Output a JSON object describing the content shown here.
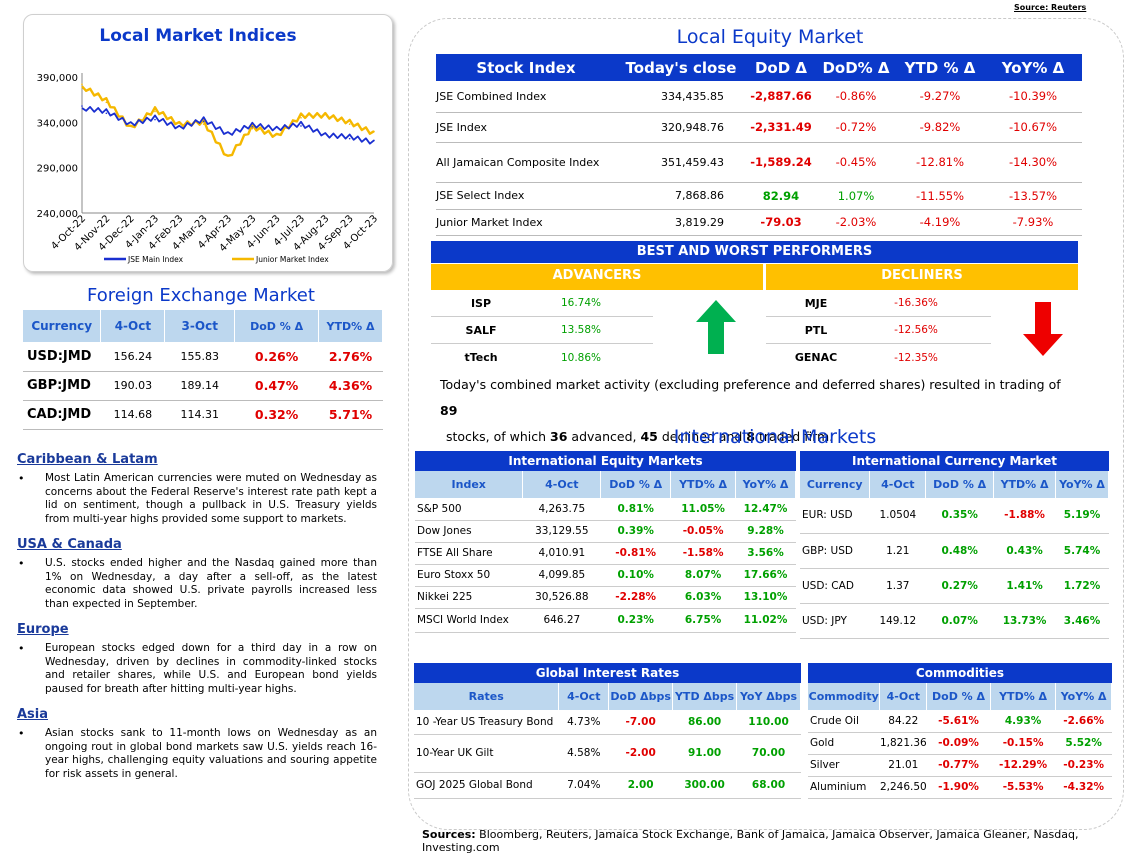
{
  "source_note": "Source: Reuters",
  "local_indices_chart": {
    "title": "Local Market Indices",
    "chart_data": {
      "type": "line",
      "title": "Local Market Indices",
      "y_ticks": [
        "390,000",
        "340,000",
        "290,000",
        "240,000"
      ],
      "ylim": [
        240000,
        390000
      ],
      "x_ticks": [
        "4-Oct-22",
        "4-Nov-22",
        "4-Dec-22",
        "4-Jan-23",
        "4-Feb-23",
        "4-Mar-23",
        "4-Apr-23",
        "4-May-23",
        "4-Jun-23",
        "4-Jul-23",
        "4-Aug-23",
        "4-Sep-23",
        "4-Oct-23"
      ],
      "series": [
        {
          "name": "JSE Main Index",
          "color": "#1a2fd0",
          "values": [
            358000,
            350000,
            340000,
            343000,
            336000,
            341000,
            329000,
            335000,
            335000,
            336000,
            328000,
            322000,
            320000
          ]
        },
        {
          "name": "Junior Market Index",
          "color": "#f5b800",
          "values": [
            382000,
            362000,
            336000,
            352000,
            340000,
            338000,
            303000,
            333000,
            327000,
            345000,
            350000,
            338000,
            330000
          ]
        }
      ],
      "legend_position": "bottom",
      "grid": false
    }
  },
  "forex": {
    "title": "Foreign Exchange Market",
    "headers": [
      "Currency",
      "4-Oct",
      "3-Oct",
      "DoD % Δ",
      "YTD% Δ"
    ],
    "rows": [
      [
        "USD:JMD",
        "156.24",
        "155.83",
        "0.26%",
        "2.76%"
      ],
      [
        "GBP:JMD",
        "190.03",
        "189.14",
        "0.47%",
        "4.36%"
      ],
      [
        "CAD:JMD",
        "114.68",
        "114.31",
        "0.32%",
        "5.71%"
      ]
    ]
  },
  "news": [
    {
      "heading": "Caribbean & Latam",
      "text": "Most Latin American currencies were muted on Wednesday as concerns about the Federal Reserve's interest rate path kept a lid on sentiment, though a pullback in U.S. Treasury yields from multi-year highs provided some support to markets."
    },
    {
      "heading": "USA & Canada",
      "text": "U.S. stocks ended higher and the Nasdaq gained more than 1% on Wednesday, a day after a sell-off, as the latest economic data showed U.S. private payrolls increased less than expected in September."
    },
    {
      "heading": "Europe",
      "text": "European stocks edged down for a third day in a row on Wednesday, driven by declines in commodity-linked stocks and retailer shares, while U.S. and European bond yields paused for breath after hitting multi-year highs."
    },
    {
      "heading": "Asia",
      "text": "Asian stocks sank to 11-month lows on Wednesday as an ongoing rout in global bond markets saw U.S. yields reach 16-year highs, challenging equity valuations and souring appetite for risk assets in general."
    }
  ],
  "local_equity": {
    "title": "Local Equity Market",
    "headers": [
      "Stock Index",
      "Today's close",
      "DoD  Δ",
      "DoD% Δ",
      "YTD % Δ",
      "YoY% Δ"
    ],
    "rows": [
      [
        "JSE Combined Index",
        "334,435.85",
        "-2,887.66",
        "-0.86%",
        "-9.27%",
        "-10.39%"
      ],
      [
        "JSE Index",
        "320,948.76",
        "-2,331.49",
        "-0.72%",
        "-9.82%",
        "-10.67%"
      ],
      [
        "All Jamaican Composite Index",
        "351,459.43",
        "-1,589.24",
        "-0.45%",
        "-12.81%",
        "-14.30%"
      ],
      [
        "JSE Select Index",
        "7,868.86",
        "82.94",
        "1.07%",
        "-11.55%",
        "-13.57%"
      ],
      [
        "Junior Market Index",
        "3,819.29",
        "-79.03",
        "-2.03%",
        "-4.19%",
        "-7.93%"
      ]
    ]
  },
  "performers": {
    "title": "BEST AND WORST PERFORMERS",
    "advancers_label": "ADVANCERS",
    "decliners_label": "DECLINERS",
    "advancers": [
      [
        "ISP",
        "16.74%"
      ],
      [
        "SALF",
        "13.58%"
      ],
      [
        "tTech",
        "10.86%"
      ]
    ],
    "decliners": [
      [
        "MJE",
        "-16.36%"
      ],
      [
        "PTL",
        "-12.56%"
      ],
      [
        "GENAC",
        "-12.35%"
      ]
    ],
    "summary_a": "Today's combined market activity (excluding preference and deferred shares) resulted in trading of ",
    "summary_total": "89",
    "summary_b": "stocks, of which ",
    "summary_adv": "36",
    "summary_c": " advanced, ",
    "summary_dec": "45",
    "summary_d": " declined and ",
    "summary_firm": "8",
    "summary_e": " traded firm."
  },
  "international": {
    "title": "International Markets",
    "equity": {
      "title": "International Equity Markets",
      "headers": [
        "Index",
        "4-Oct",
        "DoD % Δ",
        "YTD% Δ",
        "YoY% Δ"
      ],
      "rows": [
        [
          "S&P 500",
          "4,263.75",
          "0.81%",
          "11.05%",
          "12.47%"
        ],
        [
          "Dow Jones",
          "33,129.55",
          "0.39%",
          "-0.05%",
          "9.28%"
        ],
        [
          "FTSE All Share",
          "4,010.91",
          "-0.81%",
          "-1.58%",
          "3.56%"
        ],
        [
          "Euro Stoxx 50",
          "4,099.85",
          "0.10%",
          "8.07%",
          "17.66%"
        ],
        [
          "Nikkei 225",
          "30,526.88",
          "-2.28%",
          "6.03%",
          "13.10%"
        ],
        [
          "MSCI World Index",
          "646.27",
          "0.23%",
          "6.75%",
          "11.02%"
        ]
      ]
    },
    "currency": {
      "title": "International Currency Market",
      "headers": [
        "Currency",
        "4-Oct",
        "DoD % Δ",
        "YTD% Δ",
        "YoY% Δ"
      ],
      "rows": [
        [
          "EUR: USD",
          "1.0504",
          "0.35%",
          "-1.88%",
          "5.19%"
        ],
        [
          "GBP: USD",
          "1.21",
          "0.48%",
          "0.43%",
          "5.74%"
        ],
        [
          "USD: CAD",
          "1.37",
          "0.27%",
          "1.41%",
          "1.72%"
        ],
        [
          "USD: JPY",
          "149.12",
          "0.07%",
          "13.73%",
          "3.46%"
        ]
      ]
    },
    "rates": {
      "title": "Global Interest Rates",
      "headers": [
        "Rates",
        "4-Oct",
        "DoD Δbps",
        "YTD Δbps",
        "YoY Δbps"
      ],
      "rows": [
        [
          "10 -Year US Treasury Bond",
          "4.73%",
          "-7.00",
          "86.00",
          "110.00"
        ],
        [
          "10-Year UK Gilt",
          "4.58%",
          "-2.00",
          "91.00",
          "70.00"
        ],
        [
          "GOJ 2025 Global Bond",
          "7.04%",
          "2.00",
          "300.00",
          "68.00"
        ]
      ]
    },
    "commodities": {
      "title": "Commodities",
      "headers": [
        "Commodity",
        "4-Oct",
        "DoD % Δ",
        "YTD% Δ",
        "YoY% Δ"
      ],
      "rows": [
        [
          "Crude Oil",
          "84.22",
          "-5.61%",
          "4.93%",
          "-2.66%"
        ],
        [
          "Gold",
          "1,821.36",
          "-0.09%",
          "-0.15%",
          "5.52%"
        ],
        [
          "Silver",
          "21.01",
          "-0.77%",
          "-12.29%",
          "-0.23%"
        ],
        [
          "Aluminium",
          "2,246.50",
          "-1.90%",
          "-5.53%",
          "-4.32%"
        ]
      ]
    }
  },
  "sources_label": "Sources:",
  "sources_text": " Bloomberg, Reuters, Jamaica Stock Exchange, Bank of Jamaica, Jamaica Observer, Jamaica Gleaner, Nasdaq, Investing.com"
}
